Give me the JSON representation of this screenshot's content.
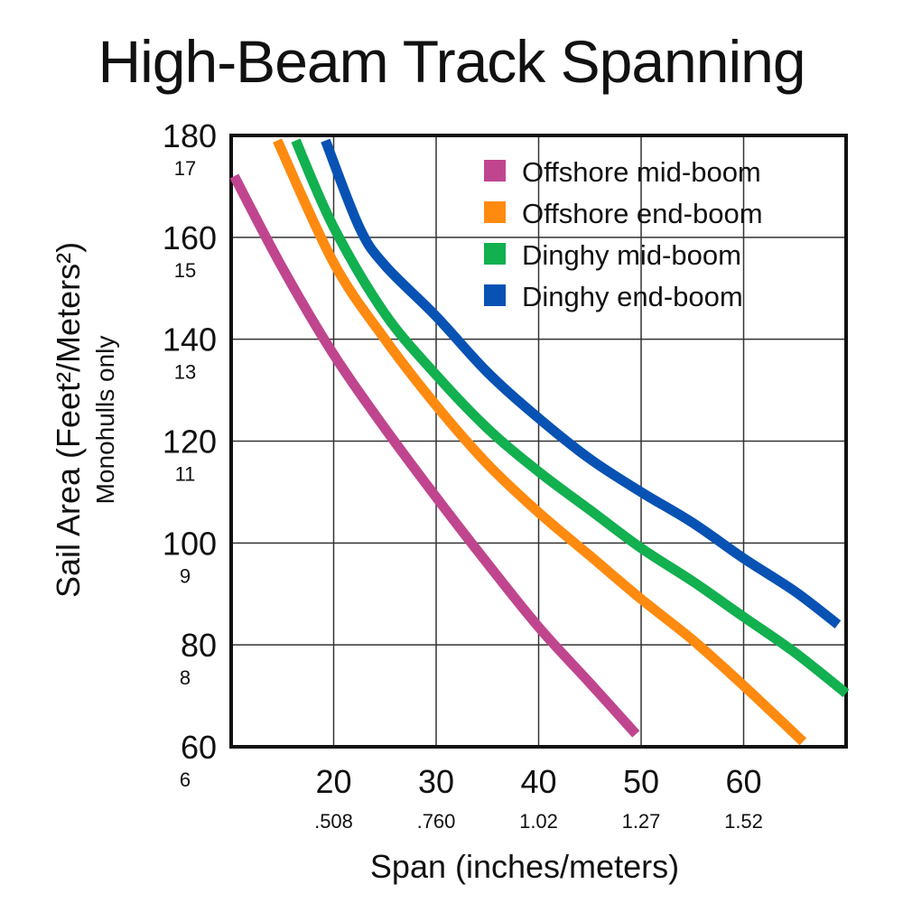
{
  "chart_data": {
    "type": "line",
    "title": "High-Beam Track Spanning",
    "xlabel": "Span (inches/meters)",
    "ylabel": "Sail Area (Feet²/Meters²)",
    "ylabel_sub": "Monohulls only",
    "xlim": [
      10,
      70
    ],
    "ylim": [
      60,
      180
    ],
    "x_ticks": [
      {
        "value": 20,
        "label": "20",
        "sublabel": ".508"
      },
      {
        "value": 30,
        "label": "30",
        "sublabel": ".760"
      },
      {
        "value": 40,
        "label": "40",
        "sublabel": "1.02"
      },
      {
        "value": 50,
        "label": "50",
        "sublabel": "1.27"
      },
      {
        "value": 60,
        "label": "60",
        "sublabel": "1.52"
      }
    ],
    "y_ticks": [
      {
        "value": 180,
        "label": "180",
        "sublabel": "17"
      },
      {
        "value": 160,
        "label": "160",
        "sublabel": "15"
      },
      {
        "value": 140,
        "label": "140",
        "sublabel": "13"
      },
      {
        "value": 120,
        "label": "120",
        "sublabel": "11"
      },
      {
        "value": 100,
        "label": "100",
        "sublabel": "9"
      },
      {
        "value": 80,
        "label": "80",
        "sublabel": "8"
      },
      {
        "value": 60,
        "label": "60",
        "sublabel": "6"
      }
    ],
    "grid": true,
    "legend": "top-right",
    "series": [
      {
        "name": "Offshore mid-boom",
        "color": "#c0458f",
        "points": [
          [
            10.3,
            172
          ],
          [
            15,
            154
          ],
          [
            20,
            137
          ],
          [
            25,
            122.5
          ],
          [
            30,
            109
          ],
          [
            35,
            96
          ],
          [
            40,
            83.5
          ],
          [
            45,
            72.5
          ],
          [
            49.5,
            62.5
          ]
        ]
      },
      {
        "name": "Offshore end-boom",
        "color": "#ff8a10",
        "points": [
          [
            14.5,
            179
          ],
          [
            20,
            155
          ],
          [
            25,
            140
          ],
          [
            30,
            127
          ],
          [
            35,
            115.5
          ],
          [
            40,
            106
          ],
          [
            45,
            97.5
          ],
          [
            50,
            89
          ],
          [
            55,
            81
          ],
          [
            60,
            72
          ],
          [
            65.8,
            61
          ]
        ]
      },
      {
        "name": "Dinghy mid-boom",
        "color": "#12b04f",
        "points": [
          [
            16.3,
            179
          ],
          [
            20,
            162
          ],
          [
            25,
            145
          ],
          [
            30,
            133
          ],
          [
            35,
            122.5
          ],
          [
            40,
            114
          ],
          [
            45,
            106.5
          ],
          [
            50,
            99
          ],
          [
            55,
            92.5
          ],
          [
            60,
            85.5
          ],
          [
            65,
            78.5
          ],
          [
            70,
            70.5
          ]
        ]
      },
      {
        "name": "Dinghy end-boom",
        "color": "#0852b4",
        "points": [
          [
            19.2,
            179
          ],
          [
            22.5,
            162
          ],
          [
            25,
            154.5
          ],
          [
            30,
            144.5
          ],
          [
            35,
            133.5
          ],
          [
            40,
            124.5
          ],
          [
            45,
            116.5
          ],
          [
            50,
            110
          ],
          [
            55,
            104
          ],
          [
            60,
            97
          ],
          [
            65,
            90.5
          ],
          [
            69.2,
            84
          ]
        ]
      }
    ]
  }
}
